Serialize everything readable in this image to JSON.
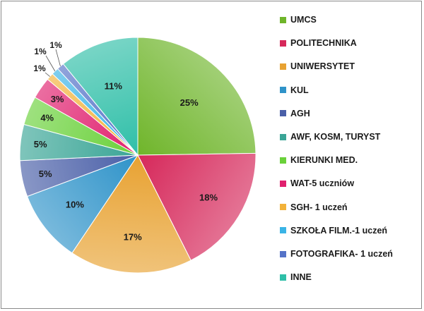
{
  "chart_data": {
    "type": "pie",
    "title": "",
    "categories": [
      "UMCS",
      "POLITECHNIKA",
      "UNIWERSYTET",
      "KUL",
      "AGH",
      "AWF, KOSM, TURYST",
      "KIERUNKI MED.",
      "WAT-5 uczniów",
      "SGH- 1 uczeń",
      "SZKOŁA FILM.-1 uczeń",
      "FOTOGRAFIKA- 1 uczeń",
      "INNE"
    ],
    "values": [
      25,
      18,
      17,
      10,
      5,
      5,
      4,
      3,
      1,
      1,
      1,
      11
    ],
    "labels": [
      "25%",
      "18%",
      "17%",
      "10%",
      "5%",
      "5%",
      "4%",
      "3%",
      "1%",
      "1%",
      "1%",
      "11%"
    ],
    "colors": [
      "#6fb52a",
      "#d6285a",
      "#e8a232",
      "#2f93c9",
      "#4a5fa8",
      "#3aa596",
      "#6ad13a",
      "#e0206e",
      "#f2b23a",
      "#3ab4e6",
      "#5573c8",
      "#2fbfa8"
    ],
    "legend_position": "right"
  }
}
